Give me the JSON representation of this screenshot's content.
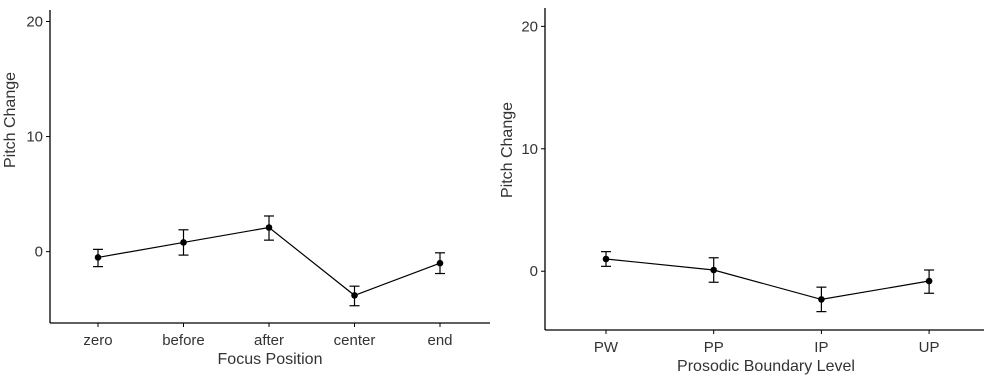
{
  "chart_data": [
    {
      "type": "line",
      "xlabel": "Focus Position",
      "ylabel": "Pitch Change",
      "categories": [
        "zero",
        "before",
        "after",
        "center",
        "end"
      ],
      "values": [
        -0.5,
        0.8,
        2.1,
        -3.8,
        -1.0
      ],
      "error_low": [
        -1.3,
        -0.3,
        1.0,
        -4.7,
        -1.9
      ],
      "error_high": [
        0.2,
        1.9,
        3.1,
        -3.0,
        -0.1
      ],
      "yticks": [
        0,
        10,
        20
      ],
      "ylim": [
        -6.2,
        21
      ],
      "grid": false,
      "legend": "none"
    },
    {
      "type": "line",
      "xlabel": "Prosodic Boundary Level",
      "ylabel": "Pitch Change",
      "categories": [
        "PW",
        "PP",
        "IP",
        "UP"
      ],
      "values": [
        1.0,
        0.1,
        -2.3,
        -0.8
      ],
      "error_low": [
        0.4,
        -0.9,
        -3.3,
        -1.8
      ],
      "error_high": [
        1.6,
        1.1,
        -1.3,
        0.1
      ],
      "yticks": [
        0,
        10,
        20
      ],
      "ylim": [
        -4.8,
        21.5
      ],
      "grid": false,
      "legend": "none"
    }
  ]
}
